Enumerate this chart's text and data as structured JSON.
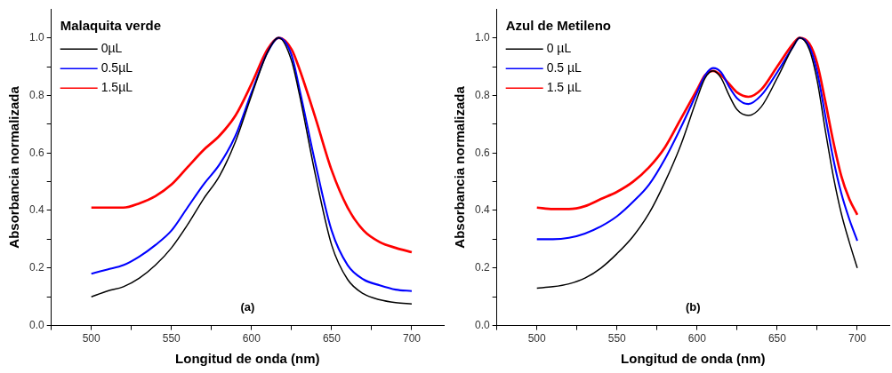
{
  "chart_data": [
    {
      "type": "line",
      "title": "Malaquita verde",
      "xlabel": "Longitud de onda (nm)",
      "ylabel": "Absorbancia normalizada",
      "annotations": [
        "(a)"
      ],
      "legend": "top left",
      "grid": false,
      "marker": "none",
      "xlim": [
        475,
        720
      ],
      "xticks": [
        {
          "value": 475,
          "label": null
        },
        500,
        {
          "value": 525,
          "label": null
        },
        550,
        {
          "value": 575,
          "label": null
        },
        600,
        {
          "value": 625,
          "label": null
        },
        650,
        {
          "value": 675,
          "label": null
        },
        700
      ],
      "ylim": [
        0,
        1.1
      ],
      "yticks": [
        {
          "value": 0,
          "label": "0.0"
        },
        {
          "value": 0.1,
          "label": null
        },
        {
          "value": 0.2,
          "label": "0.2"
        },
        {
          "value": 0.3,
          "label": null
        },
        {
          "value": 0.4,
          "label": "0.4"
        },
        {
          "value": 0.5,
          "label": null
        },
        {
          "value": 0.6,
          "label": "0.6"
        },
        {
          "value": 0.7,
          "label": null
        },
        {
          "value": 0.8,
          "label": "0.8"
        },
        {
          "value": 0.9,
          "label": null
        },
        {
          "value": 1.0,
          "label": "1.0"
        }
      ],
      "x": [
        500,
        510,
        520,
        530,
        540,
        550,
        560,
        570,
        580,
        590,
        600,
        610,
        617,
        625,
        630,
        640,
        650,
        660,
        670,
        680,
        690,
        700
      ],
      "series": [
        {
          "name": "0µL",
          "color": "#000000",
          "values": [
            0.1,
            0.12,
            0.135,
            0.165,
            0.21,
            0.27,
            0.35,
            0.44,
            0.52,
            0.64,
            0.8,
            0.95,
            1.0,
            0.92,
            0.8,
            0.52,
            0.28,
            0.16,
            0.11,
            0.09,
            0.08,
            0.075
          ]
        },
        {
          "name": "0.5µL",
          "color": "#0000ff",
          "values": [
            0.18,
            0.195,
            0.21,
            0.24,
            0.28,
            0.33,
            0.41,
            0.49,
            0.56,
            0.66,
            0.81,
            0.95,
            1.0,
            0.94,
            0.82,
            0.56,
            0.33,
            0.21,
            0.16,
            0.14,
            0.125,
            0.12
          ]
        },
        {
          "name": "1.5µL",
          "color": "#ff0000",
          "values": [
            0.41,
            0.41,
            0.41,
            0.425,
            0.45,
            0.49,
            0.55,
            0.61,
            0.66,
            0.73,
            0.84,
            0.96,
            1.0,
            0.96,
            0.89,
            0.72,
            0.54,
            0.41,
            0.33,
            0.29,
            0.27,
            0.255
          ]
        }
      ]
    },
    {
      "type": "line",
      "title": "Azul de Metileno",
      "xlabel": "Longitud de onda (nm)",
      "ylabel": "Absorbancia normalizada",
      "annotations": [
        "(b)"
      ],
      "legend": "top left",
      "grid": false,
      "marker": "none",
      "xlim": [
        475,
        720
      ],
      "xticks": [
        {
          "value": 475,
          "label": null
        },
        500,
        {
          "value": 525,
          "label": null
        },
        550,
        {
          "value": 575,
          "label": null
        },
        600,
        {
          "value": 625,
          "label": null
        },
        650,
        {
          "value": 675,
          "label": null
        },
        700
      ],
      "ylim": [
        0,
        1.1
      ],
      "yticks": [
        {
          "value": 0,
          "label": "0.0"
        },
        {
          "value": 0.1,
          "label": null
        },
        {
          "value": 0.2,
          "label": "0.2"
        },
        {
          "value": 0.3,
          "label": null
        },
        {
          "value": 0.4,
          "label": "0.4"
        },
        {
          "value": 0.5,
          "label": null
        },
        {
          "value": 0.6,
          "label": "0.6"
        },
        {
          "value": 0.7,
          "label": null
        },
        {
          "value": 0.8,
          "label": "0.8"
        },
        {
          "value": 0.9,
          "label": null
        },
        {
          "value": 1.0,
          "label": "1.0"
        }
      ],
      "x": [
        500,
        510,
        520,
        530,
        540,
        550,
        560,
        570,
        580,
        590,
        600,
        605,
        610,
        615,
        620,
        625,
        632,
        640,
        650,
        660,
        664,
        670,
        675,
        680,
        685,
        690,
        695,
        700
      ],
      "series": [
        {
          "name": "0 µL",
          "color": "#000000",
          "values": [
            0.13,
            0.135,
            0.145,
            0.165,
            0.2,
            0.25,
            0.31,
            0.39,
            0.5,
            0.63,
            0.79,
            0.86,
            0.885,
            0.86,
            0.8,
            0.75,
            0.73,
            0.76,
            0.86,
            0.97,
            1.0,
            0.96,
            0.85,
            0.68,
            0.52,
            0.39,
            0.29,
            0.2
          ]
        },
        {
          "name": "0.5 µL",
          "color": "#0000ff",
          "values": [
            0.3,
            0.3,
            0.305,
            0.32,
            0.345,
            0.38,
            0.43,
            0.49,
            0.58,
            0.69,
            0.81,
            0.87,
            0.895,
            0.88,
            0.83,
            0.79,
            0.77,
            0.8,
            0.88,
            0.97,
            1.0,
            0.97,
            0.88,
            0.73,
            0.58,
            0.46,
            0.37,
            0.295
          ]
        },
        {
          "name": "1.5 µL",
          "color": "#ff0000",
          "values": [
            0.41,
            0.405,
            0.405,
            0.415,
            0.44,
            0.465,
            0.5,
            0.55,
            0.62,
            0.72,
            0.82,
            0.87,
            0.885,
            0.87,
            0.84,
            0.81,
            0.795,
            0.82,
            0.9,
            0.98,
            1.0,
            0.98,
            0.91,
            0.78,
            0.64,
            0.52,
            0.44,
            0.385
          ]
        }
      ]
    }
  ]
}
